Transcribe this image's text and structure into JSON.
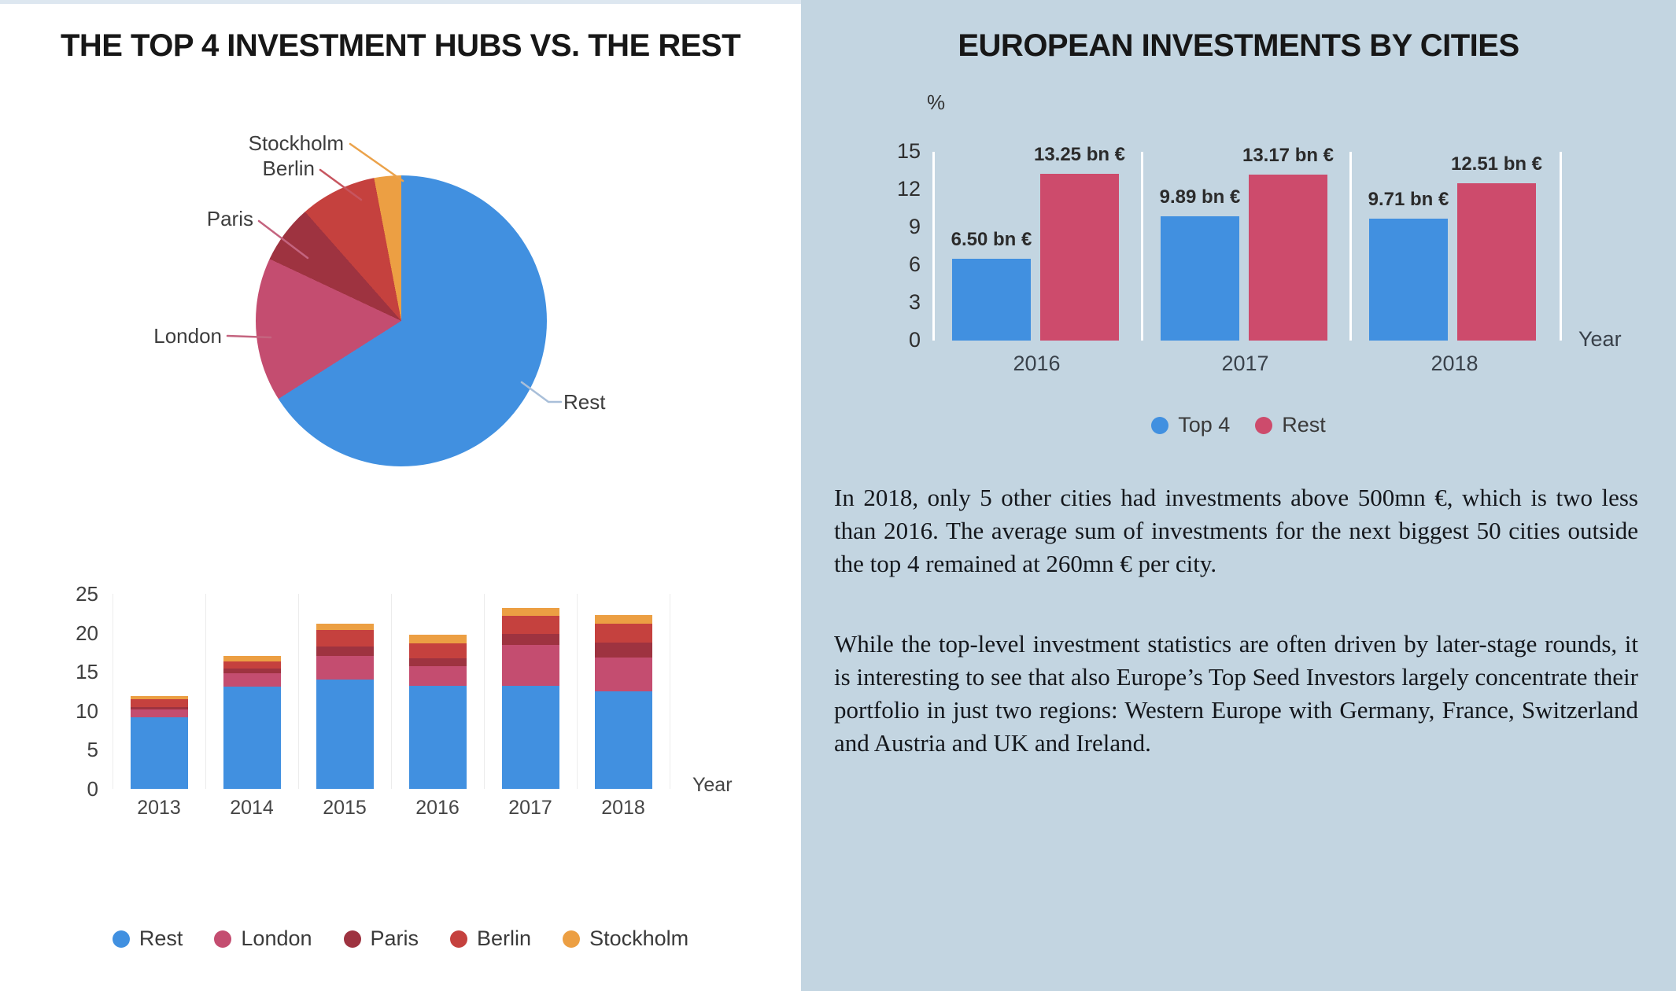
{
  "left_panel": {
    "title": "THE TOP 4 INVESTMENT HUBS VS. THE REST",
    "xaxis_label": "Year"
  },
  "right_panel": {
    "title": "EUROPEAN INVESTMENTS BY CITIES",
    "percent_label": "%",
    "xaxis_label": "Year",
    "paragraph_1": "In 2018, only 5 other cities had investments above 500mn €, which is two less than 2016. The average sum of investments for the next biggest 50 cities outside the top 4 remained at 260mn € per city.",
    "paragraph_2": "While the top-level investment statistics are often driven by later-stage rounds, it is interesting to see that also Europe’s Top Seed Investors largely concentrate their portfolio in just two regions: Western Europe with Germany, France, Switzerland and Austria and UK and Ireland."
  },
  "colors": {
    "right_panel_bg": "#c3d5e1",
    "blue": "#4190e0",
    "london_pink": "#c44d70",
    "paris_dark_red": "#9e3340",
    "berlin_red": "#c5413e",
    "stockholm_orange": "#ec9f43",
    "rest_grouped_pink": "#cd4b6c",
    "gridline": "#ececec",
    "separator_white": "#ffffff",
    "title_text": "#171717",
    "body_text": "#14171c"
  },
  "chart_data": [
    {
      "type": "pie",
      "title": "THE TOP 4 INVESTMENT HUBS VS. THE REST",
      "labels": [
        "Rest",
        "London",
        "Paris",
        "Berlin",
        "Stockholm"
      ],
      "values_percent": [
        66,
        16,
        6.5,
        8.5,
        3
      ],
      "colors": [
        "#4190e0",
        "#c44d70",
        "#9e3340",
        "#c5413e",
        "#ec9f43"
      ],
      "leader_line_colors": [
        "#a9bfd9",
        "#c4647f",
        "#c4647f",
        "#c7555f",
        "#eba24a"
      ],
      "start_angle": "12 o'clock, clockwise",
      "legend_position": "none (labels with leader lines)"
    },
    {
      "type": "bar",
      "subtype": "stacked",
      "categories": [
        "2013",
        "2014",
        "2015",
        "2016",
        "2017",
        "2018"
      ],
      "series": [
        {
          "name": "Rest",
          "color": "#4190e0",
          "values": [
            9.2,
            13.1,
            14.0,
            13.25,
            13.2,
            12.5
          ]
        },
        {
          "name": "London",
          "color": "#c44d70",
          "values": [
            1.0,
            1.7,
            3.0,
            2.5,
            5.3,
            4.3
          ]
        },
        {
          "name": "Paris",
          "color": "#9e3340",
          "values": [
            0.3,
            0.6,
            1.2,
            1.0,
            1.4,
            2.0
          ]
        },
        {
          "name": "Berlin",
          "color": "#c5413e",
          "values": [
            1.0,
            0.9,
            2.2,
            1.9,
            2.3,
            2.4
          ]
        },
        {
          "name": "Stockholm",
          "color": "#ec9f43",
          "values": [
            0.4,
            0.7,
            0.8,
            1.1,
            1.0,
            1.1
          ]
        }
      ],
      "xlabel": "Year",
      "ylabel": "",
      "ylim": [
        0,
        25
      ],
      "yticks": [
        0,
        5,
        10,
        15,
        20,
        25
      ],
      "grid": "vertical light gridlines between year groups",
      "legend_position": "bottom"
    },
    {
      "type": "bar",
      "subtype": "grouped",
      "title": "EUROPEAN INVESTMENTS BY CITIES",
      "categories": [
        "2016",
        "2017",
        "2018"
      ],
      "series": [
        {
          "name": "Top 4",
          "color": "#4190e0",
          "values": [
            6.5,
            9.89,
            9.71
          ],
          "value_labels": [
            "6.50 bn €",
            "9.89 bn €",
            "9.71 bn €"
          ]
        },
        {
          "name": "Rest",
          "color": "#cd4b6c",
          "values": [
            13.25,
            13.17,
            12.51
          ],
          "value_labels": [
            "13.25 bn €",
            "13.17 bn €",
            "12.51 bn €"
          ]
        }
      ],
      "xlabel": "Year",
      "ylabel": "%",
      "ylim": [
        0,
        15
      ],
      "yticks": [
        0,
        3,
        6,
        9,
        12,
        15
      ],
      "grid": "white vertical separators between year groups",
      "legend_position": "bottom"
    }
  ]
}
